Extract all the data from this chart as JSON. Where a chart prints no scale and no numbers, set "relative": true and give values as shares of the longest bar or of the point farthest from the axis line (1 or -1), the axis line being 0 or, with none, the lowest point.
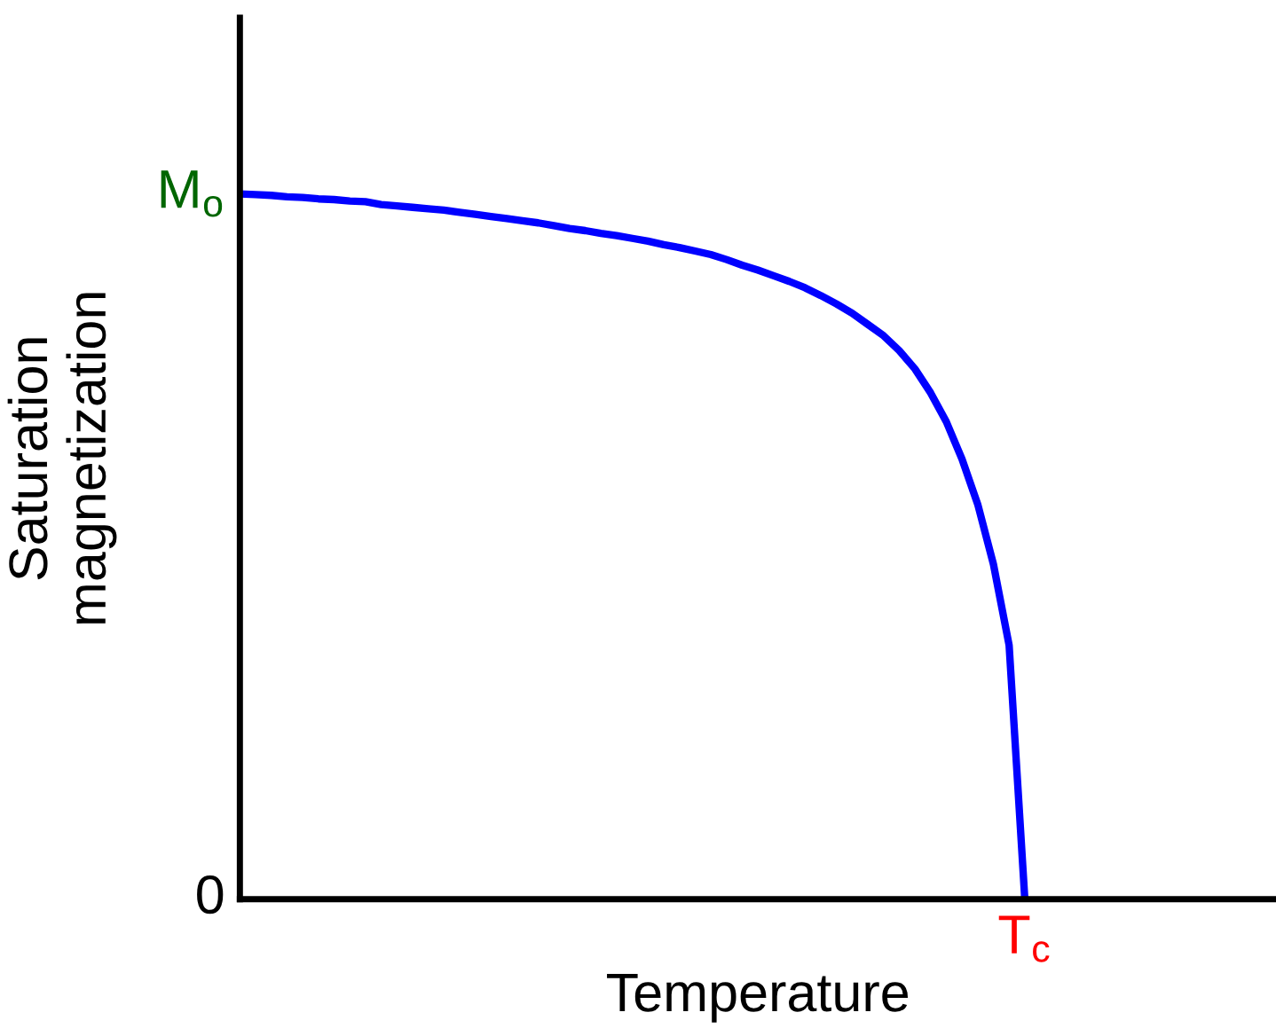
{
  "chart_data": {
    "type": "line",
    "relative": true,
    "xlabel": "Temperature",
    "ylabel": "Saturation\nmagnetization",
    "categories": [
      null,
      null,
      null,
      null,
      null,
      null,
      null,
      null,
      null,
      null,
      null,
      null,
      null,
      null,
      null,
      null,
      null,
      null,
      null,
      null,
      null,
      null,
      null,
      null,
      null,
      null,
      null,
      null,
      null,
      null,
      null,
      null,
      null,
      null,
      null,
      null,
      null,
      null,
      null,
      null,
      null,
      null,
      null,
      null,
      null,
      null,
      null,
      null,
      null,
      null,
      null
    ],
    "series": [
      {
        "color": "#0000ff",
        "values": [
          1.0,
          0.999,
          0.998,
          0.996,
          0.995,
          0.993,
          0.992,
          0.99,
          0.989,
          0.985,
          0.983,
          0.981,
          0.979,
          0.977,
          0.974,
          0.971,
          0.968,
          0.965,
          0.962,
          0.959,
          0.955,
          0.951,
          0.948,
          0.944,
          0.941,
          0.937,
          0.933,
          0.928,
          0.924,
          0.919,
          0.914,
          0.907,
          0.899,
          0.892,
          0.884,
          0.876,
          0.867,
          0.856,
          0.844,
          0.831,
          0.815,
          0.799,
          0.778,
          0.752,
          0.718,
          0.677,
          0.624,
          0.56,
          0.475,
          0.36,
          0
        ]
      }
    ],
    "annotations": [
      "M$_{o}$",
      "0",
      "T$_{c}$"
    ],
    "legend": false
  }
}
